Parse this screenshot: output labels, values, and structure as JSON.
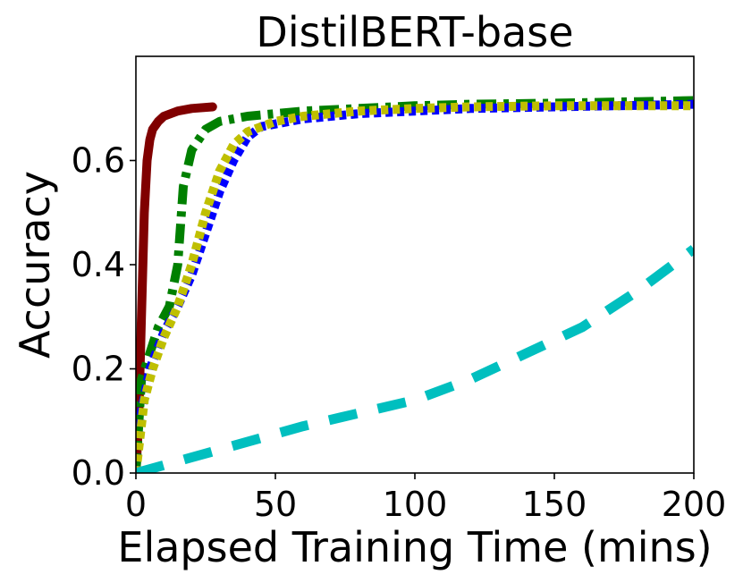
{
  "chart_data": {
    "type": "line",
    "title": "DistilBERT-base",
    "xlabel": "Elapsed Training Time (mins)",
    "ylabel": "Accuracy",
    "xlim": [
      0,
      200
    ],
    "ylim": [
      0,
      0.8
    ],
    "xticks": [
      0,
      50,
      100,
      150,
      200
    ],
    "xtick_labels": [
      "0",
      "50",
      "100",
      "150",
      "200"
    ],
    "yticks": [
      0.0,
      0.2,
      0.4,
      0.6
    ],
    "ytick_labels": [
      "0.0",
      "0.2",
      "0.4",
      "0.6"
    ],
    "grid": false,
    "series": [
      {
        "name": "dark-red-solid",
        "color": "#800000",
        "dash": "solid",
        "x": [
          0,
          1,
          2,
          3,
          4,
          5,
          6,
          8,
          10,
          15,
          20,
          27.5
        ],
        "y": [
          0.0,
          0.1,
          0.3,
          0.5,
          0.6,
          0.64,
          0.66,
          0.675,
          0.685,
          0.695,
          0.7,
          0.703
        ]
      },
      {
        "name": "green-dashdot",
        "color": "#008000",
        "dash": "dashdot",
        "x": [
          0,
          2,
          5,
          8,
          12,
          15,
          17,
          20,
          25,
          30,
          35,
          40,
          50,
          60,
          80,
          100,
          120,
          150,
          180,
          200
        ],
        "y": [
          0.0,
          0.18,
          0.23,
          0.28,
          0.32,
          0.4,
          0.55,
          0.62,
          0.66,
          0.675,
          0.68,
          0.685,
          0.69,
          0.695,
          0.7,
          0.705,
          0.708,
          0.71,
          0.713,
          0.715
        ]
      },
      {
        "name": "blue-dotted",
        "color": "#0000ff",
        "dash": "dotted",
        "x": [
          0,
          2,
          5,
          10,
          15,
          20,
          25,
          30,
          35,
          40,
          45,
          50,
          60,
          80,
          100,
          120,
          150,
          180,
          200
        ],
        "y": [
          0.0,
          0.12,
          0.2,
          0.27,
          0.32,
          0.38,
          0.46,
          0.54,
          0.6,
          0.645,
          0.665,
          0.67,
          0.68,
          0.69,
          0.695,
          0.7,
          0.703,
          0.706,
          0.708
        ]
      },
      {
        "name": "olive-dotted",
        "color": "#bfbf00",
        "dash": "dotted",
        "x": [
          0,
          3,
          6,
          10,
          15,
          20,
          25,
          30,
          35,
          40,
          50,
          60,
          80,
          100,
          120,
          150,
          180,
          200
        ],
        "y": [
          0.0,
          0.14,
          0.2,
          0.26,
          0.32,
          0.4,
          0.5,
          0.58,
          0.63,
          0.655,
          0.675,
          0.685,
          0.695,
          0.7,
          0.703,
          0.705,
          0.705,
          0.705
        ]
      },
      {
        "name": "cyan-dashed",
        "color": "#00bfbf",
        "dash": "dashed",
        "x": [
          0,
          20,
          40,
          60,
          80,
          100,
          120,
          140,
          160,
          180,
          200
        ],
        "y": [
          0.0,
          0.03,
          0.06,
          0.09,
          0.115,
          0.14,
          0.18,
          0.23,
          0.28,
          0.35,
          0.43
        ]
      }
    ]
  }
}
